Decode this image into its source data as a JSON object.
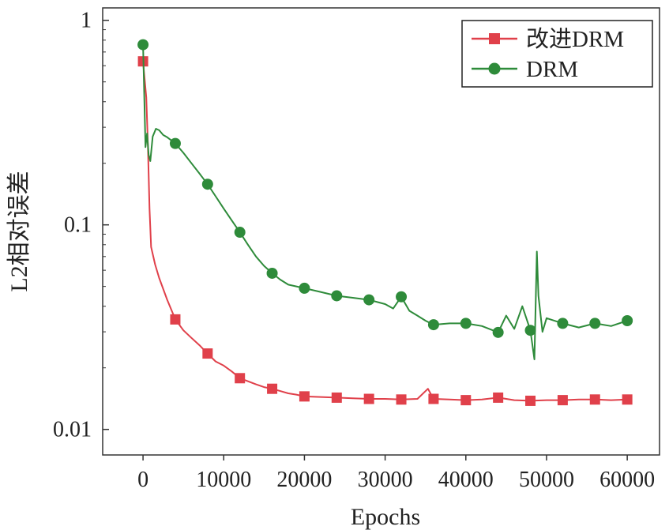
{
  "chart_data": {
    "type": "line",
    "title": "",
    "xlabel": "Epochs",
    "ylabel": "L2相对误差",
    "yscale": "log",
    "xlim": [
      -5000,
      64000
    ],
    "ylim": [
      0.0075,
      1.15
    ],
    "x_ticks": [
      0,
      10000,
      20000,
      30000,
      40000,
      50000,
      60000
    ],
    "y_ticks": [
      0.01,
      0.1,
      1
    ],
    "x_tick_labels": [
      "0",
      "10000",
      "20000",
      "30000",
      "40000",
      "50000",
      "60000"
    ],
    "y_tick_labels": [
      "0.01",
      "0.1",
      "1"
    ],
    "grid": false,
    "legend_position": "top-right",
    "series": [
      {
        "name": "改进DRM",
        "color": "#e0404a",
        "marker": "square",
        "markers": {
          "x": [
            0,
            4000,
            8000,
            12000,
            16000,
            20000,
            24000,
            28000,
            32000,
            36000,
            40000,
            44000,
            48000,
            52000,
            56000,
            60000
          ],
          "y": [
            0.63,
            0.0345,
            0.0235,
            0.0178,
            0.0158,
            0.0145,
            0.0143,
            0.0141,
            0.014,
            0.0141,
            0.0139,
            0.0143,
            0.0138,
            0.0139,
            0.014,
            0.014
          ]
        },
        "curve": {
          "x": [
            0,
            400,
            600,
            800,
            1000,
            1500,
            2000,
            3000,
            4000,
            5000,
            6000,
            7000,
            8000,
            9000,
            10000,
            11000,
            12000,
            13000,
            14000,
            15000,
            16000,
            17000,
            18000,
            19000,
            20000,
            22000,
            24000,
            26000,
            28000,
            30000,
            32000,
            34000,
            35300,
            36000,
            38000,
            40000,
            42000,
            44000,
            46000,
            48000,
            50000,
            52000,
            54000,
            56000,
            58000,
            60000
          ],
          "y": [
            0.63,
            0.42,
            0.25,
            0.12,
            0.078,
            0.064,
            0.055,
            0.043,
            0.0345,
            0.0305,
            0.028,
            0.0258,
            0.0235,
            0.0215,
            0.0205,
            0.0192,
            0.0178,
            0.0172,
            0.0166,
            0.0161,
            0.0158,
            0.0154,
            0.015,
            0.0148,
            0.0145,
            0.0144,
            0.0143,
            0.0142,
            0.0141,
            0.0141,
            0.014,
            0.0141,
            0.0158,
            0.0141,
            0.014,
            0.0139,
            0.014,
            0.0143,
            0.0139,
            0.0138,
            0.0139,
            0.0139,
            0.014,
            0.014,
            0.0139,
            0.014
          ]
        }
      },
      {
        "name": "DRM",
        "color": "#2e8b3a",
        "marker": "circle",
        "markers": {
          "x": [
            0,
            4000,
            8000,
            12000,
            16000,
            20000,
            24000,
            28000,
            32000,
            36000,
            40000,
            44000,
            48000,
            52000,
            56000,
            60000
          ],
          "y": [
            0.76,
            0.25,
            0.158,
            0.092,
            0.058,
            0.049,
            0.045,
            0.043,
            0.0445,
            0.0325,
            0.033,
            0.0298,
            0.0305,
            0.033,
            0.033,
            0.034
          ]
        },
        "curve": {
          "x": [
            0,
            300,
            500,
            700,
            900,
            1200,
            1600,
            2000,
            2500,
            3000,
            4000,
            5000,
            6000,
            7000,
            8000,
            9000,
            10000,
            11000,
            12000,
            13000,
            14000,
            15000,
            16000,
            17000,
            18000,
            19000,
            20000,
            22000,
            24000,
            26000,
            28000,
            30000,
            31000,
            32000,
            33000,
            34000,
            35000,
            36000,
            38000,
            40000,
            42000,
            44000,
            45000,
            46000,
            47000,
            48000,
            48500,
            48800,
            49000,
            49500,
            50000,
            52000,
            54000,
            56000,
            58000,
            60000
          ],
          "y": [
            0.76,
            0.24,
            0.28,
            0.22,
            0.205,
            0.27,
            0.295,
            0.29,
            0.275,
            0.268,
            0.25,
            0.225,
            0.2,
            0.178,
            0.158,
            0.138,
            0.12,
            0.105,
            0.092,
            0.08,
            0.07,
            0.063,
            0.058,
            0.054,
            0.051,
            0.05,
            0.049,
            0.047,
            0.045,
            0.044,
            0.043,
            0.041,
            0.039,
            0.0445,
            0.038,
            0.036,
            0.034,
            0.0325,
            0.033,
            0.033,
            0.032,
            0.0298,
            0.036,
            0.031,
            0.04,
            0.0305,
            0.022,
            0.074,
            0.045,
            0.03,
            0.035,
            0.033,
            0.0315,
            0.033,
            0.032,
            0.034
          ]
        }
      }
    ]
  }
}
